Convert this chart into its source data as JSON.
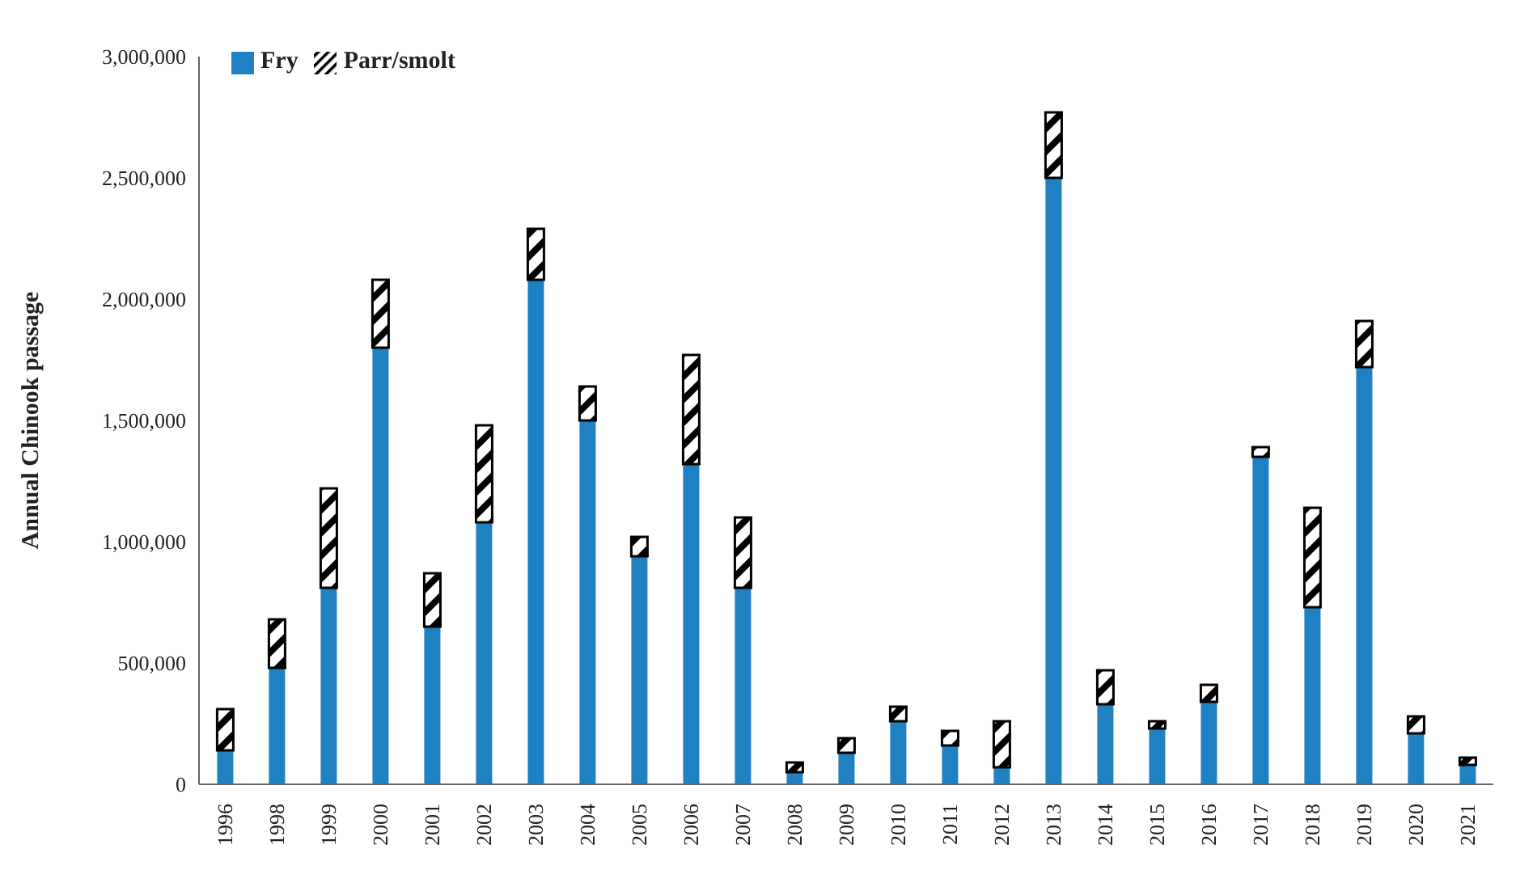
{
  "chart_data": {
    "type": "bar",
    "ylabel": "Annual Chinook passage",
    "stacked": true,
    "legend": "top left",
    "grid": false,
    "categories": [
      "1996",
      "1998",
      "1999",
      "2000",
      "2001",
      "2002",
      "2003",
      "2004",
      "2005",
      "2006",
      "2007",
      "2008",
      "2009",
      "2010",
      "2011",
      "2012",
      "2013",
      "2014",
      "2015",
      "2016",
      "2017",
      "2018",
      "2019",
      "2020",
      "2021"
    ],
    "series": [
      {
        "name": "Fry",
        "color": "#1f80c2",
        "values": [
          140000,
          480000,
          810000,
          1800000,
          650000,
          1080000,
          2080000,
          1500000,
          940000,
          1320000,
          810000,
          50000,
          130000,
          260000,
          160000,
          70000,
          2500000,
          330000,
          230000,
          340000,
          1350000,
          730000,
          1720000,
          210000,
          80000
        ]
      },
      {
        "name": "Parr/smolt",
        "color": "#000000",
        "values": [
          170000,
          200000,
          410000,
          280000,
          220000,
          400000,
          210000,
          140000,
          80000,
          450000,
          290000,
          40000,
          60000,
          60000,
          60000,
          190000,
          270000,
          140000,
          30000,
          70000,
          40000,
          410000,
          190000,
          70000,
          30000
        ]
      }
    ],
    "ylim": [
      0,
      3000000
    ],
    "yticks": [
      {
        "value": 0,
        "label": "0"
      },
      {
        "value": 500000,
        "label": "500,000"
      },
      {
        "value": 1000000,
        "label": "1,000,000"
      },
      {
        "value": 1500000,
        "label": "1,500,000"
      },
      {
        "value": 2000000,
        "label": "2,000,000"
      },
      {
        "value": 2500000,
        "label": "2,500,000"
      },
      {
        "value": 3000000,
        "label": "3,000,000"
      }
    ]
  }
}
